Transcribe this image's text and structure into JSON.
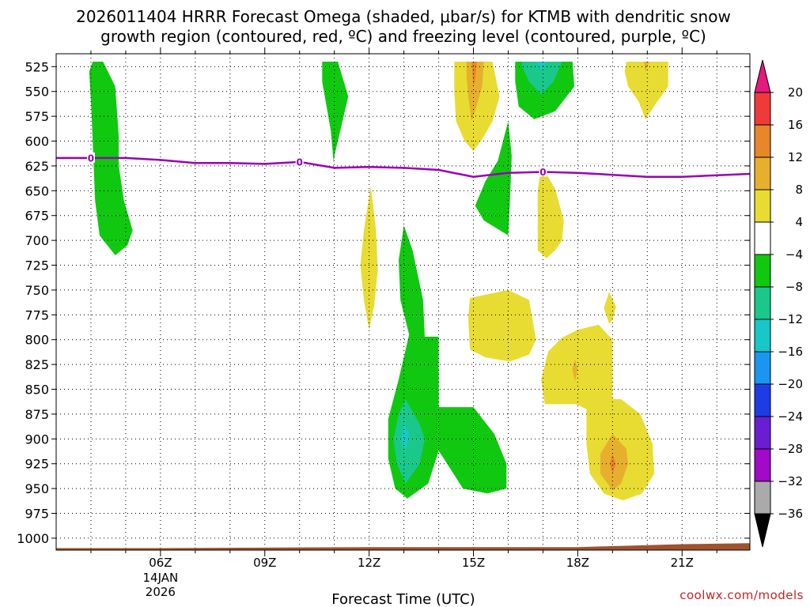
{
  "chart_data": {
    "type": "heatmap",
    "title_line1": "2026011404 HRRR Forecast Omega (shaded, μbar/s) for KTMB with dendritic snow",
    "title_line2": "growth region (contoured, red, ºC) and freezing level (contoured, purple, ºC)",
    "xlabel": "Forecast Time (UTC)",
    "ylabel": "Pressure (hPa)",
    "credit": "coolwx.com/models",
    "x_ticks": [
      {
        "hour": 6,
        "label": "06Z",
        "date_line1": "14JAN",
        "date_line2": "2026"
      },
      {
        "hour": 9,
        "label": "09Z"
      },
      {
        "hour": 12,
        "label": "12Z"
      },
      {
        "hour": 15,
        "label": "15Z"
      },
      {
        "hour": 18,
        "label": "18Z"
      },
      {
        "hour": 21,
        "label": "21Z"
      }
    ],
    "xlim": [
      3.0,
      22.95
    ],
    "y_levels": [
      525,
      550,
      575,
      600,
      625,
      650,
      675,
      700,
      725,
      750,
      775,
      800,
      825,
      850,
      875,
      900,
      925,
      950,
      975,
      1000
    ],
    "ylim": [
      512,
      1012
    ],
    "colorbar": {
      "levels": [
        -36,
        -32,
        -28,
        -24,
        -20,
        -16,
        -12,
        -8,
        -4,
        4,
        8,
        12,
        16,
        20
      ],
      "tick_labels": [
        "20",
        "16",
        "12",
        "8",
        "4",
        "−4",
        "−8",
        "−12",
        "−16",
        "−20",
        "−24",
        "−28",
        "−32",
        "−36"
      ],
      "bins_top_to_bottom": [
        {
          "range": "16 to 20",
          "color": "#f03a3a"
        },
        {
          "range": "12 to 16",
          "color": "#e8862a"
        },
        {
          "range": "8 to 12",
          "color": "#e6b02e"
        },
        {
          "range": "4 to 8",
          "color": "#e8dc32"
        },
        {
          "range": "-4 to 4",
          "color": "#ffffff"
        },
        {
          "range": "-8 to -4",
          "color": "#10c810"
        },
        {
          "range": "-12 to -8",
          "color": "#1ac88c"
        },
        {
          "range": "-16 to -12",
          "color": "#18c8c8"
        },
        {
          "range": "-20 to -16",
          "color": "#1a96f0"
        },
        {
          "range": "-24 to -20",
          "color": "#1e3ce6"
        },
        {
          "range": "-28 to -24",
          "color": "#6a1ed2"
        },
        {
          "range": "-32 to -28",
          "color": "#a00ac8"
        },
        {
          "range": "-36 to -32",
          "color": "#aaaaaa"
        }
      ],
      "overflow_high_color": "#e6197d",
      "overflow_low_color": "#000000"
    },
    "regions": [
      {
        "name": "green-plume-06z",
        "color": "#10c810",
        "value_range": "-8 to -4",
        "points": [
          [
            4.05,
            520
          ],
          [
            4.35,
            520
          ],
          [
            4.7,
            545
          ],
          [
            4.8,
            595
          ],
          [
            4.8,
            625
          ],
          [
            4.95,
            660
          ],
          [
            5.2,
            690
          ],
          [
            5.05,
            705
          ],
          [
            4.7,
            715
          ],
          [
            4.25,
            695
          ],
          [
            4.12,
            660
          ],
          [
            4.05,
            600
          ],
          [
            4.0,
            560
          ],
          [
            3.95,
            530
          ]
        ]
      },
      {
        "name": "green-spike-11z",
        "color": "#10c810",
        "value_range": "-8 to -4",
        "points": [
          [
            10.65,
            520
          ],
          [
            11.1,
            520
          ],
          [
            11.4,
            555
          ],
          [
            11.3,
            570
          ],
          [
            11.0,
            615
          ],
          [
            10.98,
            622
          ],
          [
            10.9,
            590
          ],
          [
            10.75,
            560
          ],
          [
            10.65,
            540
          ]
        ]
      },
      {
        "name": "green-low-13z",
        "color": "#10c810",
        "value_range": "-8 to -4",
        "points": [
          [
            13.0,
            685
          ],
          [
            13.25,
            710
          ],
          [
            13.55,
            760
          ],
          [
            13.6,
            797
          ],
          [
            14.0,
            797
          ],
          [
            14.0,
            868
          ],
          [
            15.0,
            868
          ],
          [
            15.6,
            895
          ],
          [
            15.95,
            925
          ],
          [
            15.95,
            950
          ],
          [
            15.4,
            955
          ],
          [
            14.7,
            950
          ],
          [
            14.15,
            920
          ],
          [
            14.0,
            912
          ],
          [
            13.7,
            945
          ],
          [
            13.1,
            960
          ],
          [
            12.75,
            950
          ],
          [
            12.55,
            920
          ],
          [
            12.55,
            880
          ],
          [
            12.85,
            840
          ],
          [
            13.15,
            795
          ],
          [
            12.9,
            760
          ],
          [
            12.85,
            720
          ]
        ]
      },
      {
        "name": "teal-core-13z",
        "color": "#1ac88c",
        "value_range": "-12 to -8",
        "points": [
          [
            13.05,
            860
          ],
          [
            13.45,
            885
          ],
          [
            13.6,
            900
          ],
          [
            13.45,
            925
          ],
          [
            13.05,
            945
          ],
          [
            12.8,
            925
          ],
          [
            12.7,
            900
          ],
          [
            12.85,
            875
          ]
        ]
      },
      {
        "name": "cyan-core-13z",
        "color": "#18c8c8",
        "value_range": "-16 to -12",
        "points": [
          [
            13.0,
            885
          ],
          [
            13.15,
            895
          ],
          [
            13.05,
            912
          ],
          [
            12.92,
            900
          ]
        ]
      },
      {
        "name": "green-spike-16z",
        "color": "#10c810",
        "value_range": "-8 to -4",
        "points": [
          [
            16.0,
            580
          ],
          [
            16.1,
            615
          ],
          [
            16.05,
            660
          ],
          [
            16.0,
            695
          ],
          [
            15.3,
            680
          ],
          [
            15.05,
            665
          ],
          [
            15.35,
            640
          ],
          [
            15.7,
            620
          ]
        ]
      },
      {
        "name": "green-top-17z",
        "color": "#10c810",
        "value_range": "-8 to -4",
        "points": [
          [
            16.2,
            520
          ],
          [
            17.85,
            520
          ],
          [
            17.9,
            545
          ],
          [
            17.35,
            570
          ],
          [
            16.75,
            578
          ],
          [
            16.3,
            565
          ],
          [
            16.2,
            540
          ]
        ]
      },
      {
        "name": "teal-top-17z",
        "color": "#1ac88c",
        "value_range": "-12 to -8",
        "points": [
          [
            16.4,
            520
          ],
          [
            17.55,
            520
          ],
          [
            17.3,
            540
          ],
          [
            16.95,
            553
          ],
          [
            16.6,
            540
          ],
          [
            16.4,
            525
          ]
        ]
      },
      {
        "name": "cyan-top-17z",
        "color": "#18c8c8",
        "value_range": "-16 to -12",
        "points": [
          [
            16.8,
            520
          ],
          [
            17.1,
            520
          ],
          [
            16.95,
            528
          ]
        ]
      },
      {
        "name": "yellow-top-15z",
        "color": "#e8dc32",
        "value_range": "4 to 8",
        "points": [
          [
            14.45,
            520
          ],
          [
            15.55,
            520
          ],
          [
            15.75,
            555
          ],
          [
            15.55,
            580
          ],
          [
            15.25,
            598
          ],
          [
            15.0,
            610
          ],
          [
            14.75,
            600
          ],
          [
            14.5,
            580
          ],
          [
            14.45,
            550
          ]
        ]
      },
      {
        "name": "gold-top-15z",
        "color": "#e6b02e",
        "value_range": "8 to 12",
        "points": [
          [
            14.8,
            520
          ],
          [
            15.3,
            520
          ],
          [
            15.25,
            545
          ],
          [
            15.05,
            570
          ],
          [
            14.95,
            580
          ],
          [
            14.85,
            555
          ],
          [
            14.8,
            535
          ]
        ]
      },
      {
        "name": "orange-top-15z",
        "color": "#e8862a",
        "value_range": "12 to 16",
        "points": [
          [
            14.95,
            520
          ],
          [
            15.1,
            520
          ],
          [
            15.05,
            538
          ],
          [
            15.0,
            545
          ]
        ]
      },
      {
        "name": "yellow-top-20z",
        "color": "#e8dc32",
        "value_range": "4 to 8",
        "points": [
          [
            19.4,
            520
          ],
          [
            20.6,
            520
          ],
          [
            20.6,
            545
          ],
          [
            20.25,
            562
          ],
          [
            19.95,
            578
          ],
          [
            19.75,
            560
          ],
          [
            19.45,
            545
          ],
          [
            19.35,
            530
          ]
        ]
      },
      {
        "name": "gold-top-20z",
        "color": "#e6b02e",
        "value_range": "8 to 12",
        "points": [
          [
            19.9,
            520
          ],
          [
            20.05,
            520
          ],
          [
            19.95,
            530
          ]
        ]
      },
      {
        "name": "yellow-freezing-17z",
        "color": "#e8dc32",
        "value_range": "4 to 8",
        "points": [
          [
            16.95,
            625
          ],
          [
            17.35,
            648
          ],
          [
            17.6,
            680
          ],
          [
            17.55,
            700
          ],
          [
            17.35,
            710
          ],
          [
            17.1,
            718
          ],
          [
            16.85,
            710
          ],
          [
            16.85,
            680
          ],
          [
            16.85,
            650
          ]
        ]
      },
      {
        "name": "yellow-spike-12z",
        "color": "#e8dc32",
        "value_range": "4 to 8",
        "points": [
          [
            12.05,
            645
          ],
          [
            12.2,
            690
          ],
          [
            12.25,
            730
          ],
          [
            12.15,
            765
          ],
          [
            12.0,
            790
          ],
          [
            11.85,
            760
          ],
          [
            11.75,
            725
          ],
          [
            11.85,
            690
          ]
        ]
      },
      {
        "name": "yellow-mid-16z",
        "color": "#e8dc32",
        "value_range": "4 to 8",
        "points": [
          [
            14.9,
            758
          ],
          [
            16.0,
            750
          ],
          [
            16.6,
            760
          ],
          [
            16.8,
            800
          ],
          [
            16.6,
            815
          ],
          [
            16.05,
            822
          ],
          [
            15.35,
            818
          ],
          [
            14.9,
            810
          ],
          [
            14.85,
            778
          ]
        ]
      },
      {
        "name": "yellow-blob-19z",
        "color": "#e8dc32",
        "value_range": "4 to 8",
        "points": [
          [
            18.9,
            752
          ],
          [
            19.1,
            767
          ],
          [
            19.0,
            780
          ],
          [
            18.9,
            784
          ],
          [
            18.75,
            768
          ]
        ]
      },
      {
        "name": "yellow-low-19z",
        "color": "#e8dc32",
        "value_range": "4 to 8",
        "points": [
          [
            18.0,
            790
          ],
          [
            18.6,
            785
          ],
          [
            19.0,
            800
          ],
          [
            19.0,
            860
          ],
          [
            19.25,
            860
          ],
          [
            19.8,
            875
          ],
          [
            20.15,
            905
          ],
          [
            20.2,
            935
          ],
          [
            19.85,
            955
          ],
          [
            19.3,
            962
          ],
          [
            18.75,
            955
          ],
          [
            18.35,
            935
          ],
          [
            18.25,
            905
          ],
          [
            18.25,
            870
          ],
          [
            17.95,
            865
          ],
          [
            17.05,
            865
          ],
          [
            16.95,
            840
          ],
          [
            17.15,
            812
          ],
          [
            17.55,
            798
          ]
        ]
      },
      {
        "name": "gold-low-19z",
        "color": "#e6b02e",
        "value_range": "8 to 12",
        "points": [
          [
            19.0,
            895
          ],
          [
            19.4,
            910
          ],
          [
            19.45,
            925
          ],
          [
            19.25,
            945
          ],
          [
            19.0,
            952
          ],
          [
            18.65,
            935
          ],
          [
            18.65,
            915
          ]
        ]
      },
      {
        "name": "orange-low-19z",
        "color": "#e8862a",
        "value_range": "12 to 16",
        "points": [
          [
            19.0,
            915
          ],
          [
            19.1,
            925
          ],
          [
            19.0,
            935
          ],
          [
            18.92,
            925
          ]
        ]
      },
      {
        "name": "gold-mid-18z",
        "color": "#e6b02e",
        "value_range": "8 to 12",
        "points": [
          [
            17.92,
            820
          ],
          [
            18.0,
            830
          ],
          [
            17.92,
            842
          ],
          [
            17.84,
            830
          ]
        ]
      }
    ],
    "freezing_level": {
      "label": "0",
      "color": "#9a00b8",
      "points": [
        [
          3.0,
          617
        ],
        [
          4.0,
          617
        ],
        [
          5.0,
          617
        ],
        [
          6.0,
          619
        ],
        [
          7.0,
          622
        ],
        [
          8.0,
          622
        ],
        [
          9.0,
          623
        ],
        [
          10.0,
          621
        ],
        [
          11.0,
          627
        ],
        [
          12.0,
          626
        ],
        [
          13.0,
          627
        ],
        [
          14.0,
          629
        ],
        [
          15.0,
          636
        ],
        [
          16.0,
          632
        ],
        [
          17.0,
          631
        ],
        [
          18.0,
          632
        ],
        [
          19.0,
          634
        ],
        [
          20.0,
          636
        ],
        [
          21.0,
          636
        ],
        [
          22.95,
          633
        ]
      ],
      "label_positions": [
        [
          4.0,
          617
        ],
        [
          10.0,
          621
        ],
        [
          17.0,
          631
        ]
      ]
    },
    "terrain": {
      "color": "#a0522d",
      "points": [
        [
          3.0,
          1010
        ],
        [
          6.0,
          1010
        ],
        [
          12.0,
          1009
        ],
        [
          18.0,
          1009
        ],
        [
          19.0,
          1008
        ],
        [
          20.0,
          1007
        ],
        [
          21.0,
          1006
        ],
        [
          22.95,
          1005
        ]
      ]
    }
  }
}
